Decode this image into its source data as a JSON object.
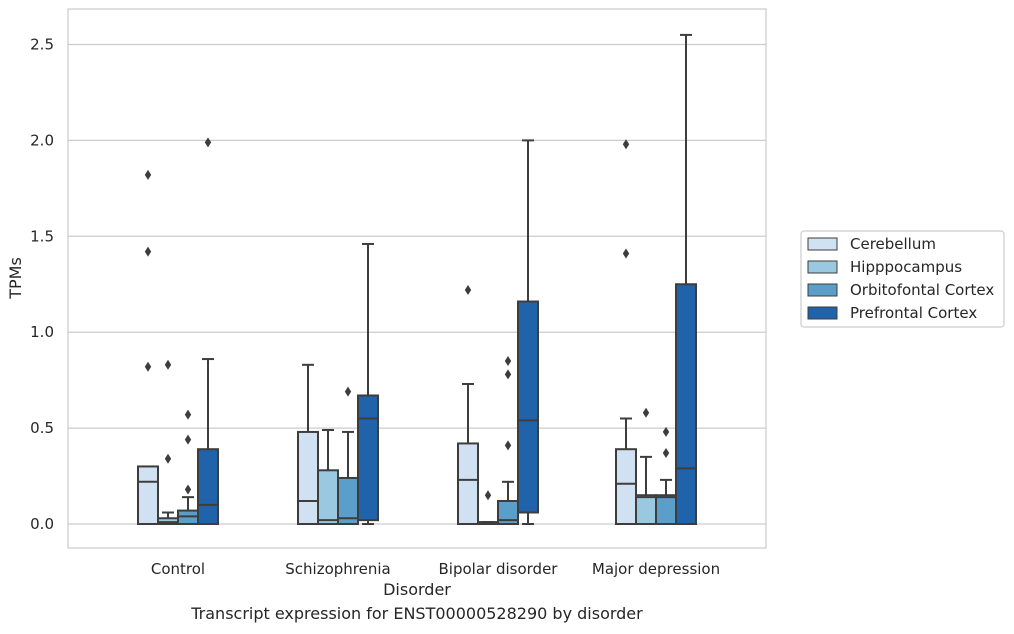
{
  "caption": "Transcript expression for ENST00000528290 by disorder",
  "chart_data": {
    "type": "box",
    "title": "",
    "xlabel": "Disorder",
    "ylabel": "TPMs",
    "ylim": [
      -0.12,
      2.68
    ],
    "yticks": [
      0.0,
      0.5,
      1.0,
      1.5,
      2.0,
      2.5
    ],
    "ytick_labels": [
      "0.0",
      "0.5",
      "1.0",
      "1.5",
      "2.0",
      "2.5"
    ],
    "grid": "horizontal",
    "legend_position": "right",
    "categories": [
      "Control",
      "Schizophrenia",
      "Bipolar disorder",
      "Major depression"
    ],
    "series": [
      {
        "name": "Cerebellum",
        "color": "#d0e1f2",
        "boxes": [
          {
            "whislo": 0.0,
            "q1": 0.0,
            "med": 0.22,
            "q3": 0.3,
            "whishi": 0.3,
            "fliers": [
              1.82,
              1.42,
              0.82
            ]
          },
          {
            "whislo": 0.0,
            "q1": 0.0,
            "med": 0.12,
            "q3": 0.48,
            "whishi": 0.83,
            "fliers": []
          },
          {
            "whislo": 0.0,
            "q1": 0.0,
            "med": 0.23,
            "q3": 0.42,
            "whishi": 0.73,
            "fliers": [
              1.22
            ]
          },
          {
            "whislo": 0.0,
            "q1": 0.0,
            "med": 0.21,
            "q3": 0.39,
            "whishi": 0.55,
            "fliers": [
              1.98,
              1.41
            ]
          }
        ]
      },
      {
        "name": "Hipppocampus",
        "color": "#9ac8e0",
        "boxes": [
          {
            "whislo": 0.0,
            "q1": 0.0,
            "med": 0.01,
            "q3": 0.03,
            "whishi": 0.06,
            "fliers": [
              0.83,
              0.34
            ]
          },
          {
            "whislo": 0.0,
            "q1": 0.0,
            "med": 0.02,
            "q3": 0.28,
            "whishi": 0.49,
            "fliers": []
          },
          {
            "whislo": 0.0,
            "q1": 0.0,
            "med": 0.005,
            "q3": 0.01,
            "whishi": 0.01,
            "fliers": [
              0.15
            ]
          },
          {
            "whislo": 0.0,
            "q1": 0.0,
            "med": 0.14,
            "q3": 0.15,
            "whishi": 0.35,
            "fliers": [
              0.58
            ]
          }
        ]
      },
      {
        "name": "Orbitofontal Cortex",
        "color": "#5a9ec9",
        "boxes": [
          {
            "whislo": 0.0,
            "q1": 0.0,
            "med": 0.04,
            "q3": 0.07,
            "whishi": 0.14,
            "fliers": [
              0.57,
              0.44,
              0.18
            ]
          },
          {
            "whislo": 0.0,
            "q1": 0.0,
            "med": 0.03,
            "q3": 0.24,
            "whishi": 0.48,
            "fliers": [
              0.69
            ]
          },
          {
            "whislo": 0.0,
            "q1": 0.0,
            "med": 0.02,
            "q3": 0.12,
            "whishi": 0.22,
            "fliers": [
              0.85,
              0.78,
              0.41
            ]
          },
          {
            "whislo": 0.0,
            "q1": 0.0,
            "med": 0.14,
            "q3": 0.15,
            "whishi": 0.23,
            "fliers": [
              0.48,
              0.37
            ]
          }
        ]
      },
      {
        "name": "Prefrontal Cortex",
        "color": "#2163aa",
        "boxes": [
          {
            "whislo": 0.0,
            "q1": 0.0,
            "med": 0.1,
            "q3": 0.39,
            "whishi": 0.86,
            "fliers": [
              1.99
            ]
          },
          {
            "whislo": 0.0,
            "q1": 0.02,
            "med": 0.55,
            "q3": 0.67,
            "whishi": 1.46,
            "fliers": []
          },
          {
            "whislo": 0.0,
            "q1": 0.06,
            "med": 0.54,
            "q3": 1.16,
            "whishi": 2.0,
            "fliers": []
          },
          {
            "whislo": 0.0,
            "q1": 0.0,
            "med": 0.29,
            "q3": 1.25,
            "whishi": 2.55,
            "fliers": []
          }
        ]
      }
    ]
  }
}
